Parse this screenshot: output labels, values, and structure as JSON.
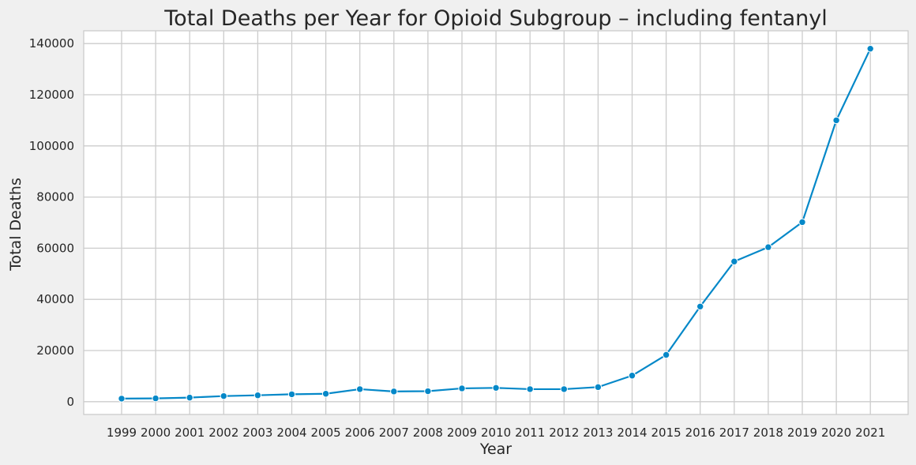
{
  "chart_data": {
    "type": "line",
    "title": "Total Deaths per Year for Opioid Subgroup – including fentanyl",
    "xlabel": "Year",
    "ylabel": "Total Deaths",
    "x": [
      "1999",
      "2000",
      "2001",
      "2002",
      "2003",
      "2004",
      "2005",
      "2006",
      "2007",
      "2008",
      "2009",
      "2010",
      "2011",
      "2012",
      "2013",
      "2014",
      "2015",
      "2016",
      "2017",
      "2018",
      "2019",
      "2020",
      "2021"
    ],
    "series": [
      {
        "values": [
          1200,
          1300,
          1600,
          2200,
          2500,
          2900,
          3100,
          4900,
          4000,
          4100,
          5200,
          5400,
          4900,
          4900,
          5700,
          10200,
          18300,
          37200,
          54800,
          60400,
          70200,
          110000,
          138000
        ]
      }
    ],
    "yticks": [
      0,
      20000,
      40000,
      60000,
      80000,
      100000,
      120000,
      140000
    ],
    "ytick_labels": [
      "0",
      "20000",
      "40000",
      "60000",
      "80000",
      "100000",
      "120000",
      "140000"
    ],
    "ylim": [
      -5000,
      145000
    ],
    "grid": true,
    "line_color": "#0588c8",
    "grid_color": "#cccccc",
    "background_color": "#ffffff"
  }
}
